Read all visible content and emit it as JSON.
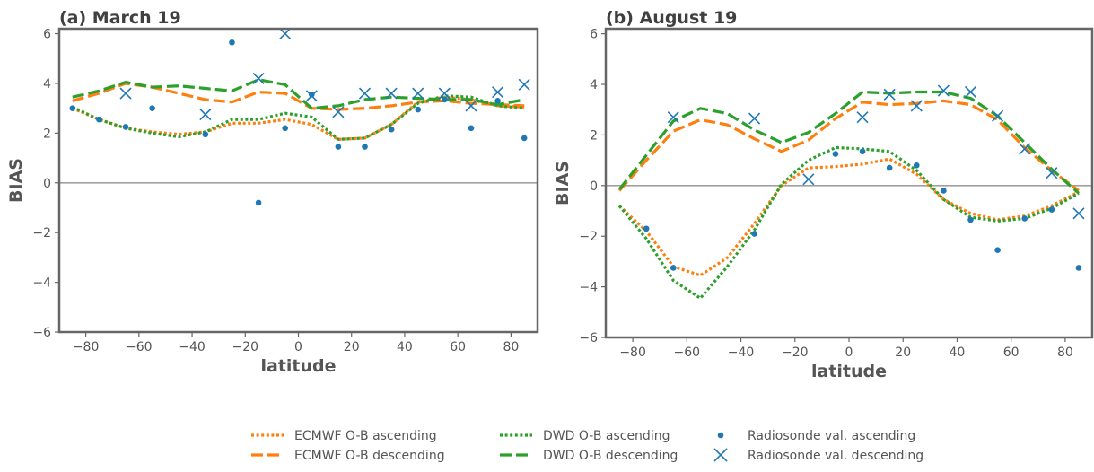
{
  "chart_data": [
    {
      "type": "line",
      "title": "(a) March 19",
      "xlabel": "latitude",
      "ylabel": "BIAS",
      "xlim": [
        -90,
        90
      ],
      "ylim": [
        -6,
        6.2
      ],
      "xticks": [
        -80,
        -60,
        -40,
        -20,
        0,
        20,
        40,
        60,
        80
      ],
      "yticks": [
        -6,
        -4,
        -2,
        0,
        2,
        4,
        6
      ],
      "zero_line": true,
      "grid": false,
      "x": [
        -85,
        -75,
        -65,
        -55,
        -45,
        -35,
        -25,
        -15,
        -5,
        5,
        15,
        25,
        35,
        45,
        55,
        65,
        75,
        85
      ],
      "series": [
        {
          "key": "ecmwf_asc",
          "values": [
            3.0,
            2.55,
            2.2,
            2.05,
            1.95,
            2.05,
            2.4,
            2.4,
            2.55,
            2.35,
            1.75,
            1.8,
            2.35,
            3.25,
            3.45,
            3.35,
            3.1,
            3.05
          ]
        },
        {
          "key": "ecmwf_desc",
          "values": [
            3.3,
            3.6,
            4.0,
            3.85,
            3.6,
            3.35,
            3.25,
            3.65,
            3.6,
            3.0,
            2.95,
            3.0,
            3.1,
            3.25,
            3.3,
            3.2,
            3.15,
            3.1
          ]
        },
        {
          "key": "dwd_asc",
          "values": [
            3.05,
            2.55,
            2.2,
            2.0,
            1.85,
            2.05,
            2.55,
            2.55,
            2.8,
            2.65,
            1.75,
            1.8,
            2.35,
            3.2,
            3.5,
            3.45,
            3.1,
            3.0
          ]
        },
        {
          "key": "dwd_desc",
          "values": [
            3.45,
            3.7,
            4.05,
            3.85,
            3.9,
            3.8,
            3.7,
            4.15,
            3.95,
            3.0,
            3.1,
            3.35,
            3.45,
            3.4,
            3.35,
            3.35,
            3.15,
            3.35
          ]
        },
        {
          "key": "rs_asc",
          "values": [
            3.0,
            2.55,
            2.25,
            3.0,
            null,
            1.95,
            5.65,
            -0.8,
            2.2,
            3.55,
            1.45,
            1.45,
            2.15,
            2.95,
            3.35,
            2.2,
            3.3,
            1.8
          ]
        },
        {
          "key": "rs_desc",
          "values": [
            null,
            null,
            3.6,
            null,
            null,
            2.75,
            null,
            4.2,
            6.0,
            3.5,
            2.85,
            3.6,
            3.6,
            3.6,
            3.6,
            3.1,
            3.65,
            3.95
          ]
        }
      ]
    },
    {
      "type": "line",
      "title": "(b) August 19",
      "xlabel": "latitude",
      "ylabel": "BIAS",
      "xlim": [
        -90,
        90
      ],
      "ylim": [
        -6,
        6.2
      ],
      "xticks": [
        -80,
        -60,
        -40,
        -20,
        0,
        20,
        40,
        60,
        80
      ],
      "yticks": [
        -6,
        -4,
        -2,
        0,
        2,
        4,
        6
      ],
      "zero_line": true,
      "grid": false,
      "x": [
        -85,
        -75,
        -65,
        -55,
        -45,
        -35,
        -25,
        -15,
        -5,
        5,
        15,
        25,
        35,
        45,
        55,
        65,
        75,
        85
      ],
      "series": [
        {
          "key": "ecmwf_asc",
          "values": [
            -0.8,
            -1.8,
            -3.2,
            -3.55,
            -2.85,
            -1.5,
            0.0,
            0.7,
            0.75,
            0.85,
            1.05,
            0.45,
            -0.55,
            -1.1,
            -1.35,
            -1.2,
            -0.8,
            -0.25
          ]
        },
        {
          "key": "ecmwf_desc",
          "values": [
            -0.2,
            1.0,
            2.15,
            2.6,
            2.4,
            1.85,
            1.35,
            1.8,
            2.65,
            3.3,
            3.2,
            3.25,
            3.35,
            3.2,
            2.6,
            1.5,
            0.6,
            -0.2
          ]
        },
        {
          "key": "dwd_asc",
          "values": [
            -0.8,
            -2.1,
            -3.75,
            -4.45,
            -3.2,
            -1.75,
            0.05,
            1.0,
            1.5,
            1.45,
            1.35,
            0.6,
            -0.55,
            -1.25,
            -1.4,
            -1.3,
            -0.9,
            -0.3
          ]
        },
        {
          "key": "dwd_desc",
          "values": [
            -0.15,
            1.2,
            2.55,
            3.05,
            2.85,
            2.2,
            1.7,
            2.1,
            2.85,
            3.7,
            3.65,
            3.7,
            3.7,
            3.45,
            2.75,
            1.7,
            0.65,
            -0.3
          ]
        },
        {
          "key": "rs_asc",
          "values": [
            null,
            -1.7,
            -3.25,
            null,
            null,
            -1.9,
            null,
            null,
            1.25,
            1.35,
            0.7,
            0.8,
            -0.2,
            -1.35,
            -2.55,
            -1.3,
            -0.95,
            -3.25
          ]
        },
        {
          "key": "rs_desc",
          "values": [
            null,
            null,
            2.7,
            null,
            null,
            2.65,
            null,
            0.25,
            null,
            2.7,
            3.6,
            3.15,
            3.75,
            3.7,
            2.75,
            1.45,
            0.5,
            -1.1
          ]
        }
      ]
    }
  ],
  "legend": {
    "placement": "bottom-center",
    "items": [
      {
        "key": "ecmwf_asc",
        "label": "ECMWF O-B ascending"
      },
      {
        "key": "ecmwf_desc",
        "label": "ECMWF O-B descending"
      },
      {
        "key": "dwd_asc",
        "label": "DWD O-B ascending"
      },
      {
        "key": "dwd_desc",
        "label": "DWD O-B descending"
      },
      {
        "key": "rs_asc",
        "label": "Radiosonde val. ascending"
      },
      {
        "key": "rs_desc",
        "label": "Radiosonde val. descending"
      }
    ]
  },
  "styles": {
    "ecmwf_asc": {
      "color": "#ff7f0e",
      "kind": "line",
      "dash": "dotted"
    },
    "ecmwf_desc": {
      "color": "#ff7f0e",
      "kind": "line",
      "dash": "dashed"
    },
    "dwd_asc": {
      "color": "#2ca02c",
      "kind": "line",
      "dash": "dotted"
    },
    "dwd_desc": {
      "color": "#2ca02c",
      "kind": "line",
      "dash": "dashed"
    },
    "rs_asc": {
      "color": "#1f77b4",
      "kind": "dot"
    },
    "rs_desc": {
      "color": "#1f77b4",
      "kind": "cross"
    },
    "axis_color": "#666666",
    "zero_line_color": "#a0a0a0"
  }
}
